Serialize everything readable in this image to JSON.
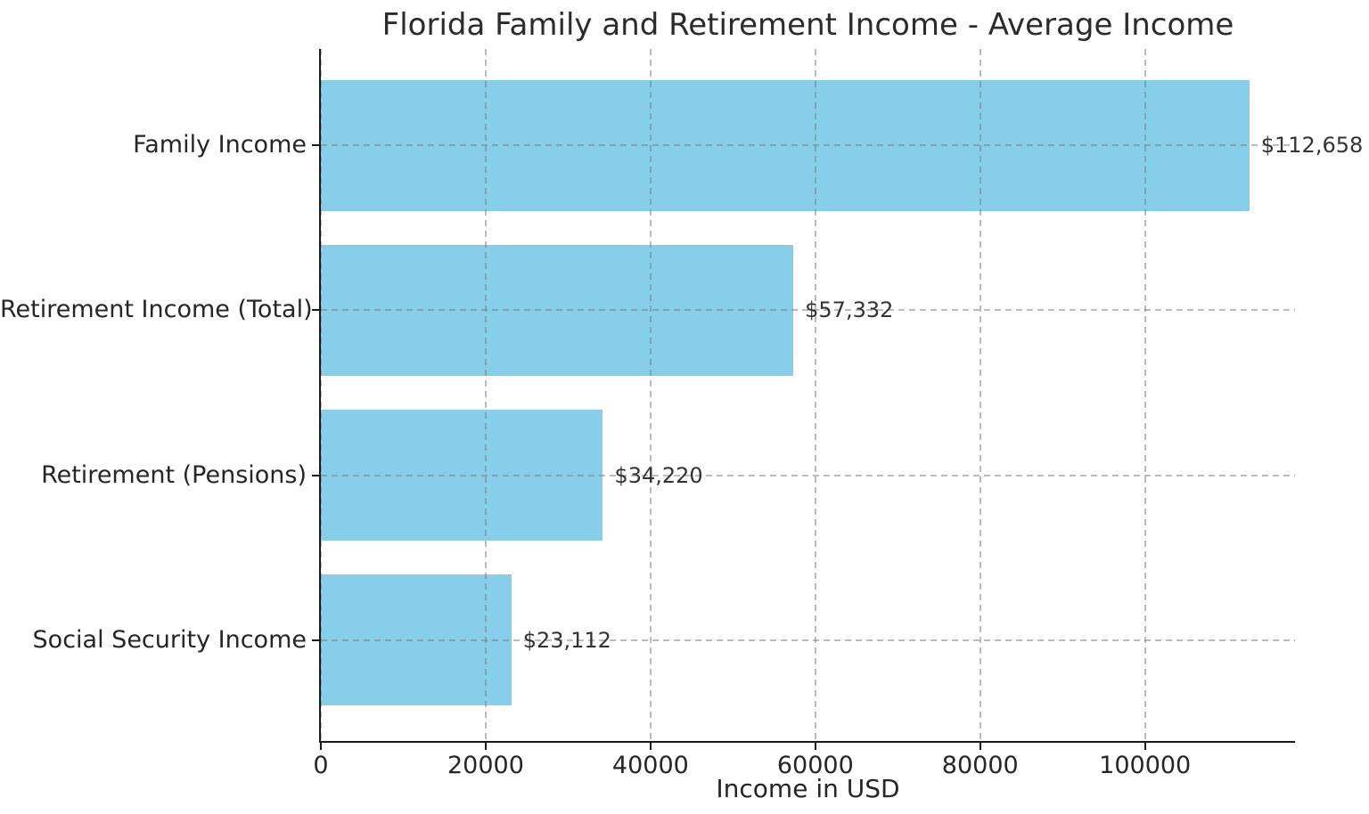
{
  "chart_data": {
    "type": "bar",
    "orientation": "horizontal",
    "title": "Florida Family and Retirement Income - Average Income",
    "categories": [
      "Family Income",
      "Retirement Income (Total)",
      "Retirement (Pensions)",
      "Social Security Income"
    ],
    "values": [
      112658,
      57332,
      34220,
      23112
    ],
    "value_labels": [
      "$112,658",
      "$57,332",
      "$34,220",
      "$23,112"
    ],
    "xlabel": "Income in USD",
    "ylabel": "",
    "xticks": [
      0,
      20000,
      40000,
      60000,
      80000,
      100000
    ],
    "xtick_labels": [
      "0",
      "20000",
      "40000",
      "60000",
      "80000",
      "100000"
    ],
    "xlim": [
      0,
      118200
    ],
    "grid": true,
    "grid_style": "dashed",
    "legend_position": "none",
    "colors": {
      "bar": "#87CEEB",
      "grid": "#8c8c8c",
      "text": "#262626",
      "spine": "#1a1a1a",
      "background": "#ffffff"
    }
  }
}
